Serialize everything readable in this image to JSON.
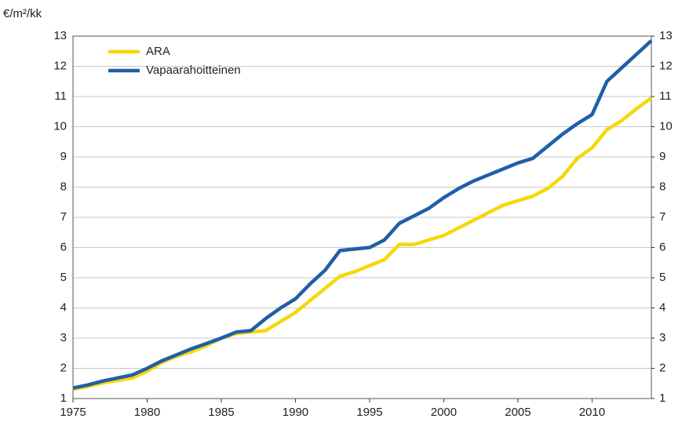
{
  "chart_data": {
    "type": "line",
    "y_axis_label": "€/m²/kk",
    "x": [
      1975,
      1976,
      1977,
      1978,
      1979,
      1980,
      1981,
      1982,
      1983,
      1984,
      1985,
      1986,
      1987,
      1988,
      1989,
      1990,
      1991,
      1992,
      1993,
      1994,
      1995,
      1996,
      1997,
      1998,
      1999,
      2000,
      2001,
      2002,
      2003,
      2004,
      2005,
      2006,
      2007,
      2008,
      2009,
      2010,
      2011,
      2012,
      2013,
      2014
    ],
    "series": [
      {
        "name": "ARA",
        "color": "#f5d80c",
        "values": [
          1.3,
          1.4,
          1.52,
          1.6,
          1.68,
          1.9,
          2.2,
          2.4,
          2.55,
          2.75,
          3.0,
          3.15,
          3.2,
          3.25,
          3.55,
          3.85,
          4.25,
          4.65,
          5.05,
          5.2,
          5.4,
          5.6,
          6.1,
          6.1,
          6.25,
          6.4,
          6.65,
          6.9,
          7.15,
          7.4,
          7.55,
          7.7,
          7.95,
          8.35,
          8.95,
          9.3,
          9.9,
          10.2,
          10.6,
          10.95
        ]
      },
      {
        "name": "Vapaarahoitteinen",
        "color": "#1f5fa8",
        "values": [
          1.35,
          1.45,
          1.58,
          1.68,
          1.78,
          2.0,
          2.25,
          2.45,
          2.65,
          2.82,
          3.0,
          3.2,
          3.25,
          3.65,
          4.0,
          4.3,
          4.8,
          5.25,
          5.9,
          5.95,
          6.0,
          6.25,
          6.8,
          7.05,
          7.3,
          7.65,
          7.95,
          8.2,
          8.4,
          8.6,
          8.8,
          8.95,
          9.35,
          9.75,
          10.1,
          10.4,
          11.5,
          11.95,
          12.4,
          12.85
        ]
      }
    ],
    "xlim": [
      1975,
      2014
    ],
    "xticks": [
      1975,
      1980,
      1985,
      1990,
      1995,
      2000,
      2005,
      2010
    ],
    "ylim": [
      1,
      13
    ],
    "yticks": [
      1,
      2,
      3,
      4,
      5,
      6,
      7,
      8,
      9,
      10,
      11,
      12,
      13
    ],
    "y2lim": [
      1,
      13
    ],
    "y2ticks": [
      1,
      2,
      3,
      4,
      5,
      6,
      7,
      8,
      9,
      10,
      11,
      12,
      13
    ],
    "grid": true,
    "legend": "upper left"
  }
}
